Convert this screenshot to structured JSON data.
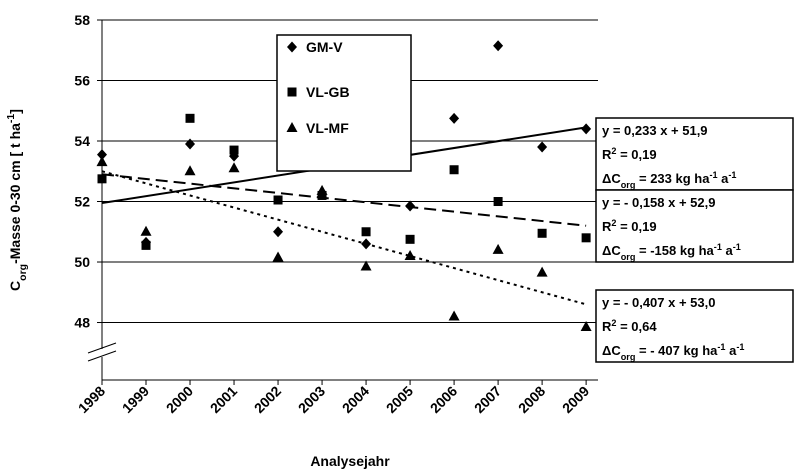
{
  "chart_data": {
    "type": "scatter",
    "x_label": "Analysejahr",
    "y_label": [
      {
        "t": "C"
      },
      {
        "t": "org",
        "s": "sub"
      },
      {
        "t": "-Masse 0-30 cm  [ t ha"
      },
      {
        "t": "-1",
        "s": "sup"
      },
      {
        "t": "]"
      }
    ],
    "x": [
      1998,
      1999,
      2000,
      2001,
      2002,
      2003,
      2004,
      2005,
      2006,
      2007,
      2008,
      2009
    ],
    "xlim": [
      1998,
      2009.27
    ],
    "xticks": [
      1998,
      1999,
      2000,
      2001,
      2002,
      2003,
      2004,
      2005,
      2006,
      2007,
      2008,
      2009
    ],
    "ylim": [
      46.1,
      58
    ],
    "yticks": [
      48,
      50,
      52,
      54,
      56,
      58
    ],
    "grid": true,
    "axis_break": true,
    "series": [
      {
        "name": "GM-V",
        "marker": "diamond",
        "color": "#000000",
        "trend_dash": "none",
        "values": [
          53.55,
          50.65,
          53.9,
          53.5,
          51.0,
          53.35,
          50.6,
          51.85,
          54.75,
          57.15,
          53.8,
          54.4
        ],
        "trend": {
          "x": [
            1998,
            2009
          ],
          "values": [
            51.95,
            54.45
          ]
        }
      },
      {
        "name": "VL-GB",
        "marker": "square",
        "color": "#000000",
        "trend_dash": "12 6",
        "values": [
          52.75,
          50.55,
          54.75,
          53.7,
          52.05,
          52.2,
          51.0,
          50.75,
          53.05,
          52.0,
          50.95,
          50.8
        ],
        "trend": {
          "x": [
            1998,
            2009
          ],
          "values": [
            52.9,
            51.2
          ]
        }
      },
      {
        "name": "VL-MF",
        "marker": "triangle",
        "color": "#000000",
        "trend_dash": "3 4",
        "values": [
          53.3,
          51.0,
          53.0,
          53.1,
          50.15,
          52.35,
          49.85,
          50.2,
          48.2,
          50.4,
          49.65,
          47.85
        ],
        "trend": {
          "x": [
            1998,
            2009
          ],
          "values": [
            53.0,
            48.6
          ]
        }
      }
    ],
    "annotations": [
      {
        "lines": [
          [
            {
              "t": "y  = 0,233 x + 51,9"
            }
          ],
          [
            {
              "t": "R"
            },
            {
              "t": "2",
              "s": "sup"
            },
            {
              "t": " = 0,19"
            }
          ],
          [
            {
              "t": "ΔC"
            },
            {
              "t": "org",
              "s": "sub"
            },
            {
              "t": " = 233 kg ha"
            },
            {
              "t": "-1",
              "s": "sup"
            },
            {
              "t": " a"
            },
            {
              "t": "-1",
              "s": "sup"
            }
          ]
        ]
      },
      {
        "lines": [
          [
            {
              "t": "y  = - 0,158 x + 52,9"
            }
          ],
          [
            {
              "t": "R"
            },
            {
              "t": "2",
              "s": "sup"
            },
            {
              "t": " = 0,19"
            }
          ],
          [
            {
              "t": "ΔC"
            },
            {
              "t": "org",
              "s": "sub"
            },
            {
              "t": " = -158 kg ha"
            },
            {
              "t": "-1",
              "s": "sup"
            },
            {
              "t": " a"
            },
            {
              "t": "-1",
              "s": "sup"
            }
          ]
        ]
      },
      {
        "lines": [
          [
            {
              "t": "y  = - 0,407 x + 53,0"
            }
          ],
          [
            {
              "t": "R"
            },
            {
              "t": "2",
              "s": "sup"
            },
            {
              "t": " = 0,64"
            }
          ],
          [
            {
              "t": "ΔC"
            },
            {
              "t": "org",
              "s": "sub"
            },
            {
              "t": " = - 407 kg ha"
            },
            {
              "t": "-1",
              "s": "sup"
            },
            {
              "t": " a"
            },
            {
              "t": "-1",
              "s": "sup"
            }
          ]
        ]
      }
    ]
  }
}
